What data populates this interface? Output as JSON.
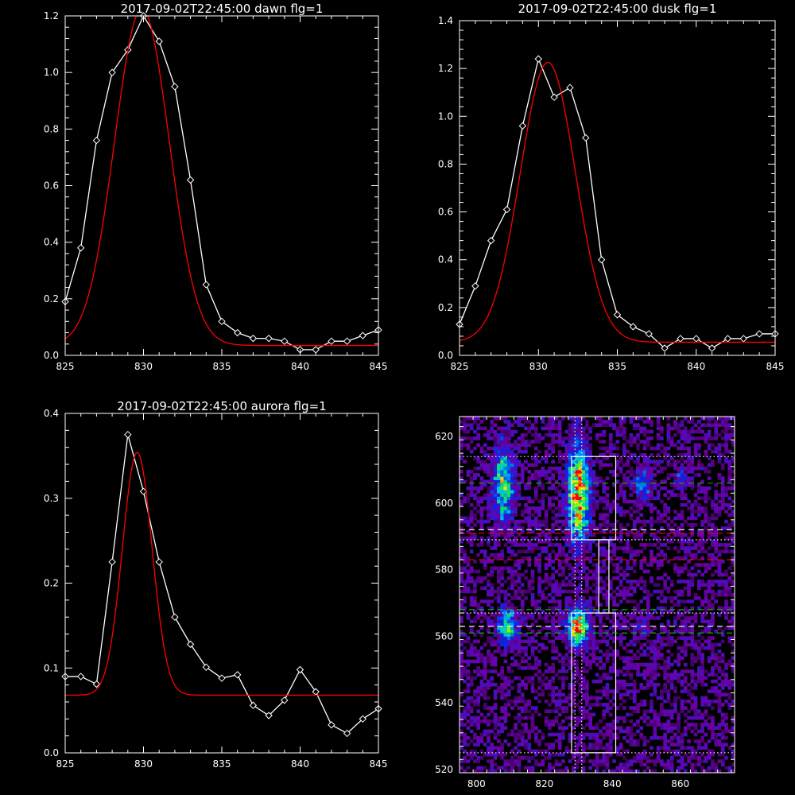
{
  "chart_data": [
    {
      "type": "line",
      "title": "2017-09-02T22:45:00 dawn flg=1",
      "xlim": [
        825,
        845
      ],
      "ylim": [
        0,
        1.2
      ],
      "xticks": [
        825,
        830,
        835,
        840,
        845
      ],
      "yticks": [
        0.0,
        0.2,
        0.4,
        0.6,
        0.8,
        1.0,
        1.2
      ],
      "ytick_labels": [
        "0.0",
        "0.2",
        "0.4",
        "0.6",
        "0.8",
        "1.0",
        "1.2"
      ],
      "series": [
        {
          "kind": "data",
          "color": "#ffffff",
          "marker": "diamond",
          "x": [
            825,
            826,
            827,
            828,
            829,
            830,
            831,
            832,
            833,
            834,
            835,
            836,
            837,
            838,
            839,
            840,
            841,
            842,
            843,
            844,
            845
          ],
          "y": [
            0.19,
            0.38,
            0.76,
            1.0,
            1.08,
            1.2,
            1.11,
            0.95,
            0.62,
            0.25,
            0.12,
            0.08,
            0.06,
            0.06,
            0.05,
            0.02,
            0.02,
            0.05,
            0.05,
            0.07,
            0.09
          ]
        },
        {
          "kind": "fit",
          "color": "#ff0000",
          "gaussian": {
            "amplitude": 1.19,
            "center": 829.9,
            "sigma": 1.75,
            "offset": 0.035
          }
        }
      ]
    },
    {
      "type": "line",
      "title": "2017-09-02T22:45:00 dusk flg=1",
      "xlim": [
        825,
        845
      ],
      "ylim": [
        0,
        1.4
      ],
      "xticks": [
        825,
        830,
        835,
        840,
        845
      ],
      "yticks": [
        0.0,
        0.2,
        0.4,
        0.6,
        0.8,
        1.0,
        1.2,
        1.4
      ],
      "ytick_labels": [
        "0.0",
        "0.2",
        "0.4",
        "0.6",
        "0.8",
        "1.0",
        "1.2",
        "1.4"
      ],
      "series": [
        {
          "kind": "data",
          "color": "#ffffff",
          "marker": "diamond",
          "x": [
            825,
            826,
            827,
            828,
            829,
            830,
            831,
            832,
            833,
            834,
            835,
            836,
            837,
            838,
            839,
            840,
            841,
            842,
            843,
            844,
            845
          ],
          "y": [
            0.13,
            0.29,
            0.48,
            0.61,
            0.96,
            1.24,
            1.08,
            1.12,
            0.91,
            0.4,
            0.17,
            0.12,
            0.09,
            0.03,
            0.07,
            0.07,
            0.03,
            0.07,
            0.07,
            0.09,
            0.09
          ]
        },
        {
          "kind": "fit",
          "color": "#ff0000",
          "gaussian": {
            "amplitude": 1.17,
            "center": 830.6,
            "sigma": 1.75,
            "offset": 0.055
          }
        }
      ]
    },
    {
      "type": "line",
      "title": "2017-09-02T22:45:00 aurora flg=1",
      "xlim": [
        825,
        845
      ],
      "ylim": [
        0,
        0.4
      ],
      "xticks": [
        825,
        830,
        835,
        840,
        845
      ],
      "yticks": [
        0.0,
        0.1,
        0.2,
        0.3,
        0.4
      ],
      "ytick_labels": [
        "0.0",
        "0.1",
        "0.2",
        "0.3",
        "0.4"
      ],
      "series": [
        {
          "kind": "data",
          "color": "#ffffff",
          "marker": "diamond",
          "x": [
            825,
            826,
            827,
            828,
            829,
            830,
            831,
            832,
            833,
            834,
            835,
            836,
            837,
            838,
            839,
            840,
            841,
            842,
            843,
            844,
            845
          ],
          "y": [
            0.09,
            0.09,
            0.081,
            0.225,
            0.375,
            0.308,
            0.225,
            0.16,
            0.128,
            0.101,
            0.088,
            0.092,
            0.056,
            0.044,
            0.062,
            0.098,
            0.072,
            0.033,
            0.023,
            0.04,
            0.052
          ]
        },
        {
          "kind": "fit",
          "color": "#ff0000",
          "gaussian": {
            "amplitude": 0.286,
            "center": 829.6,
            "sigma": 0.95,
            "offset": 0.068
          }
        }
      ]
    },
    {
      "type": "heatmap",
      "xlim": [
        795,
        876
      ],
      "ylim": [
        519,
        626
      ],
      "xticks": [
        800,
        820,
        840,
        860
      ],
      "yticks": [
        520,
        540,
        560,
        580,
        600,
        620
      ],
      "blobs": [
        {
          "x": 808,
          "y": 606,
          "sx": 2.0,
          "sy": 7.5,
          "amp": 0.55
        },
        {
          "x": 830,
          "y": 603,
          "sx": 2.0,
          "sy": 9.0,
          "amp": 0.9
        },
        {
          "x": 809,
          "y": 563,
          "sx": 1.8,
          "sy": 3.5,
          "amp": 0.55
        },
        {
          "x": 830,
          "y": 563,
          "sx": 2.0,
          "sy": 3.5,
          "amp": 0.95
        },
        {
          "x": 849,
          "y": 606,
          "sx": 1.6,
          "sy": 3.5,
          "amp": 0.3
        },
        {
          "x": 860,
          "y": 607,
          "sx": 1.2,
          "sy": 2.5,
          "amp": 0.2
        },
        {
          "x": 849,
          "y": 563,
          "sx": 1.5,
          "sy": 2.0,
          "amp": 0.18
        }
      ],
      "boxes": [
        {
          "x0": 828,
          "x1": 841,
          "y0": 589,
          "y1": 614
        },
        {
          "x0": 836,
          "x1": 839,
          "y0": 567,
          "y1": 589
        },
        {
          "x0": 828,
          "x1": 841,
          "y0": 525,
          "y1": 567
        }
      ],
      "hlines": [
        {
          "y": 614,
          "color": "#ffffff",
          "style": "dotted"
        },
        {
          "y": 606,
          "color": "#00c000",
          "style": "dashed"
        },
        {
          "y": 592,
          "color": "#ffffff",
          "style": "dashed"
        },
        {
          "y": 591,
          "color": "#ff0000",
          "style": "dashed"
        },
        {
          "y": 589,
          "color": "#ffffff",
          "style": "dotted"
        },
        {
          "y": 583,
          "color": "#ff0000",
          "style": "dashed"
        },
        {
          "y": 568,
          "color": "#00c000",
          "style": "dashed"
        },
        {
          "y": 567,
          "color": "#ffffff",
          "style": "dotted"
        },
        {
          "y": 563,
          "color": "#ffffff",
          "style": "dashed"
        },
        {
          "y": 561,
          "color": "#00c000",
          "style": "dashed"
        },
        {
          "y": 525,
          "color": "#ffffff",
          "style": "dotted"
        }
      ],
      "vlines": [
        {
          "x": 829,
          "color": "#ffffff",
          "style": "dotted"
        },
        {
          "x": 831,
          "color": "#ffffff",
          "style": "dotted"
        }
      ]
    }
  ]
}
